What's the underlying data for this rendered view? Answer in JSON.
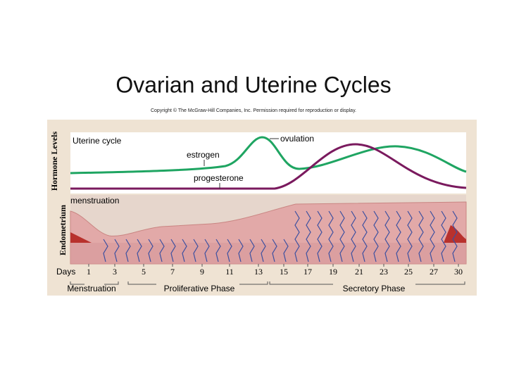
{
  "header": {
    "title": "Ovarian and Uterine Cycles",
    "copyright": "Copyright © The McGraw-Hill Companies, Inc. Permission required for reproduction or display."
  },
  "figure": {
    "hormone_axis_label": "Hormone Levels",
    "endometrium_axis_label": "Endometrium",
    "uterine_cycle": "Uterine cycle",
    "ovulation": "ovulation",
    "estrogen": "estrogen",
    "progesterone": "progesterone",
    "menstruation_label": "menstruation",
    "days_label": "Days",
    "days": [
      "1",
      "3",
      "5",
      "7",
      "9",
      "11",
      "13",
      "15",
      "17",
      "19",
      "21",
      "23",
      "25",
      "27",
      "30"
    ],
    "phases": [
      "Menstruation",
      "Proliferative Phase",
      "Secretory Phase"
    ]
  }
}
